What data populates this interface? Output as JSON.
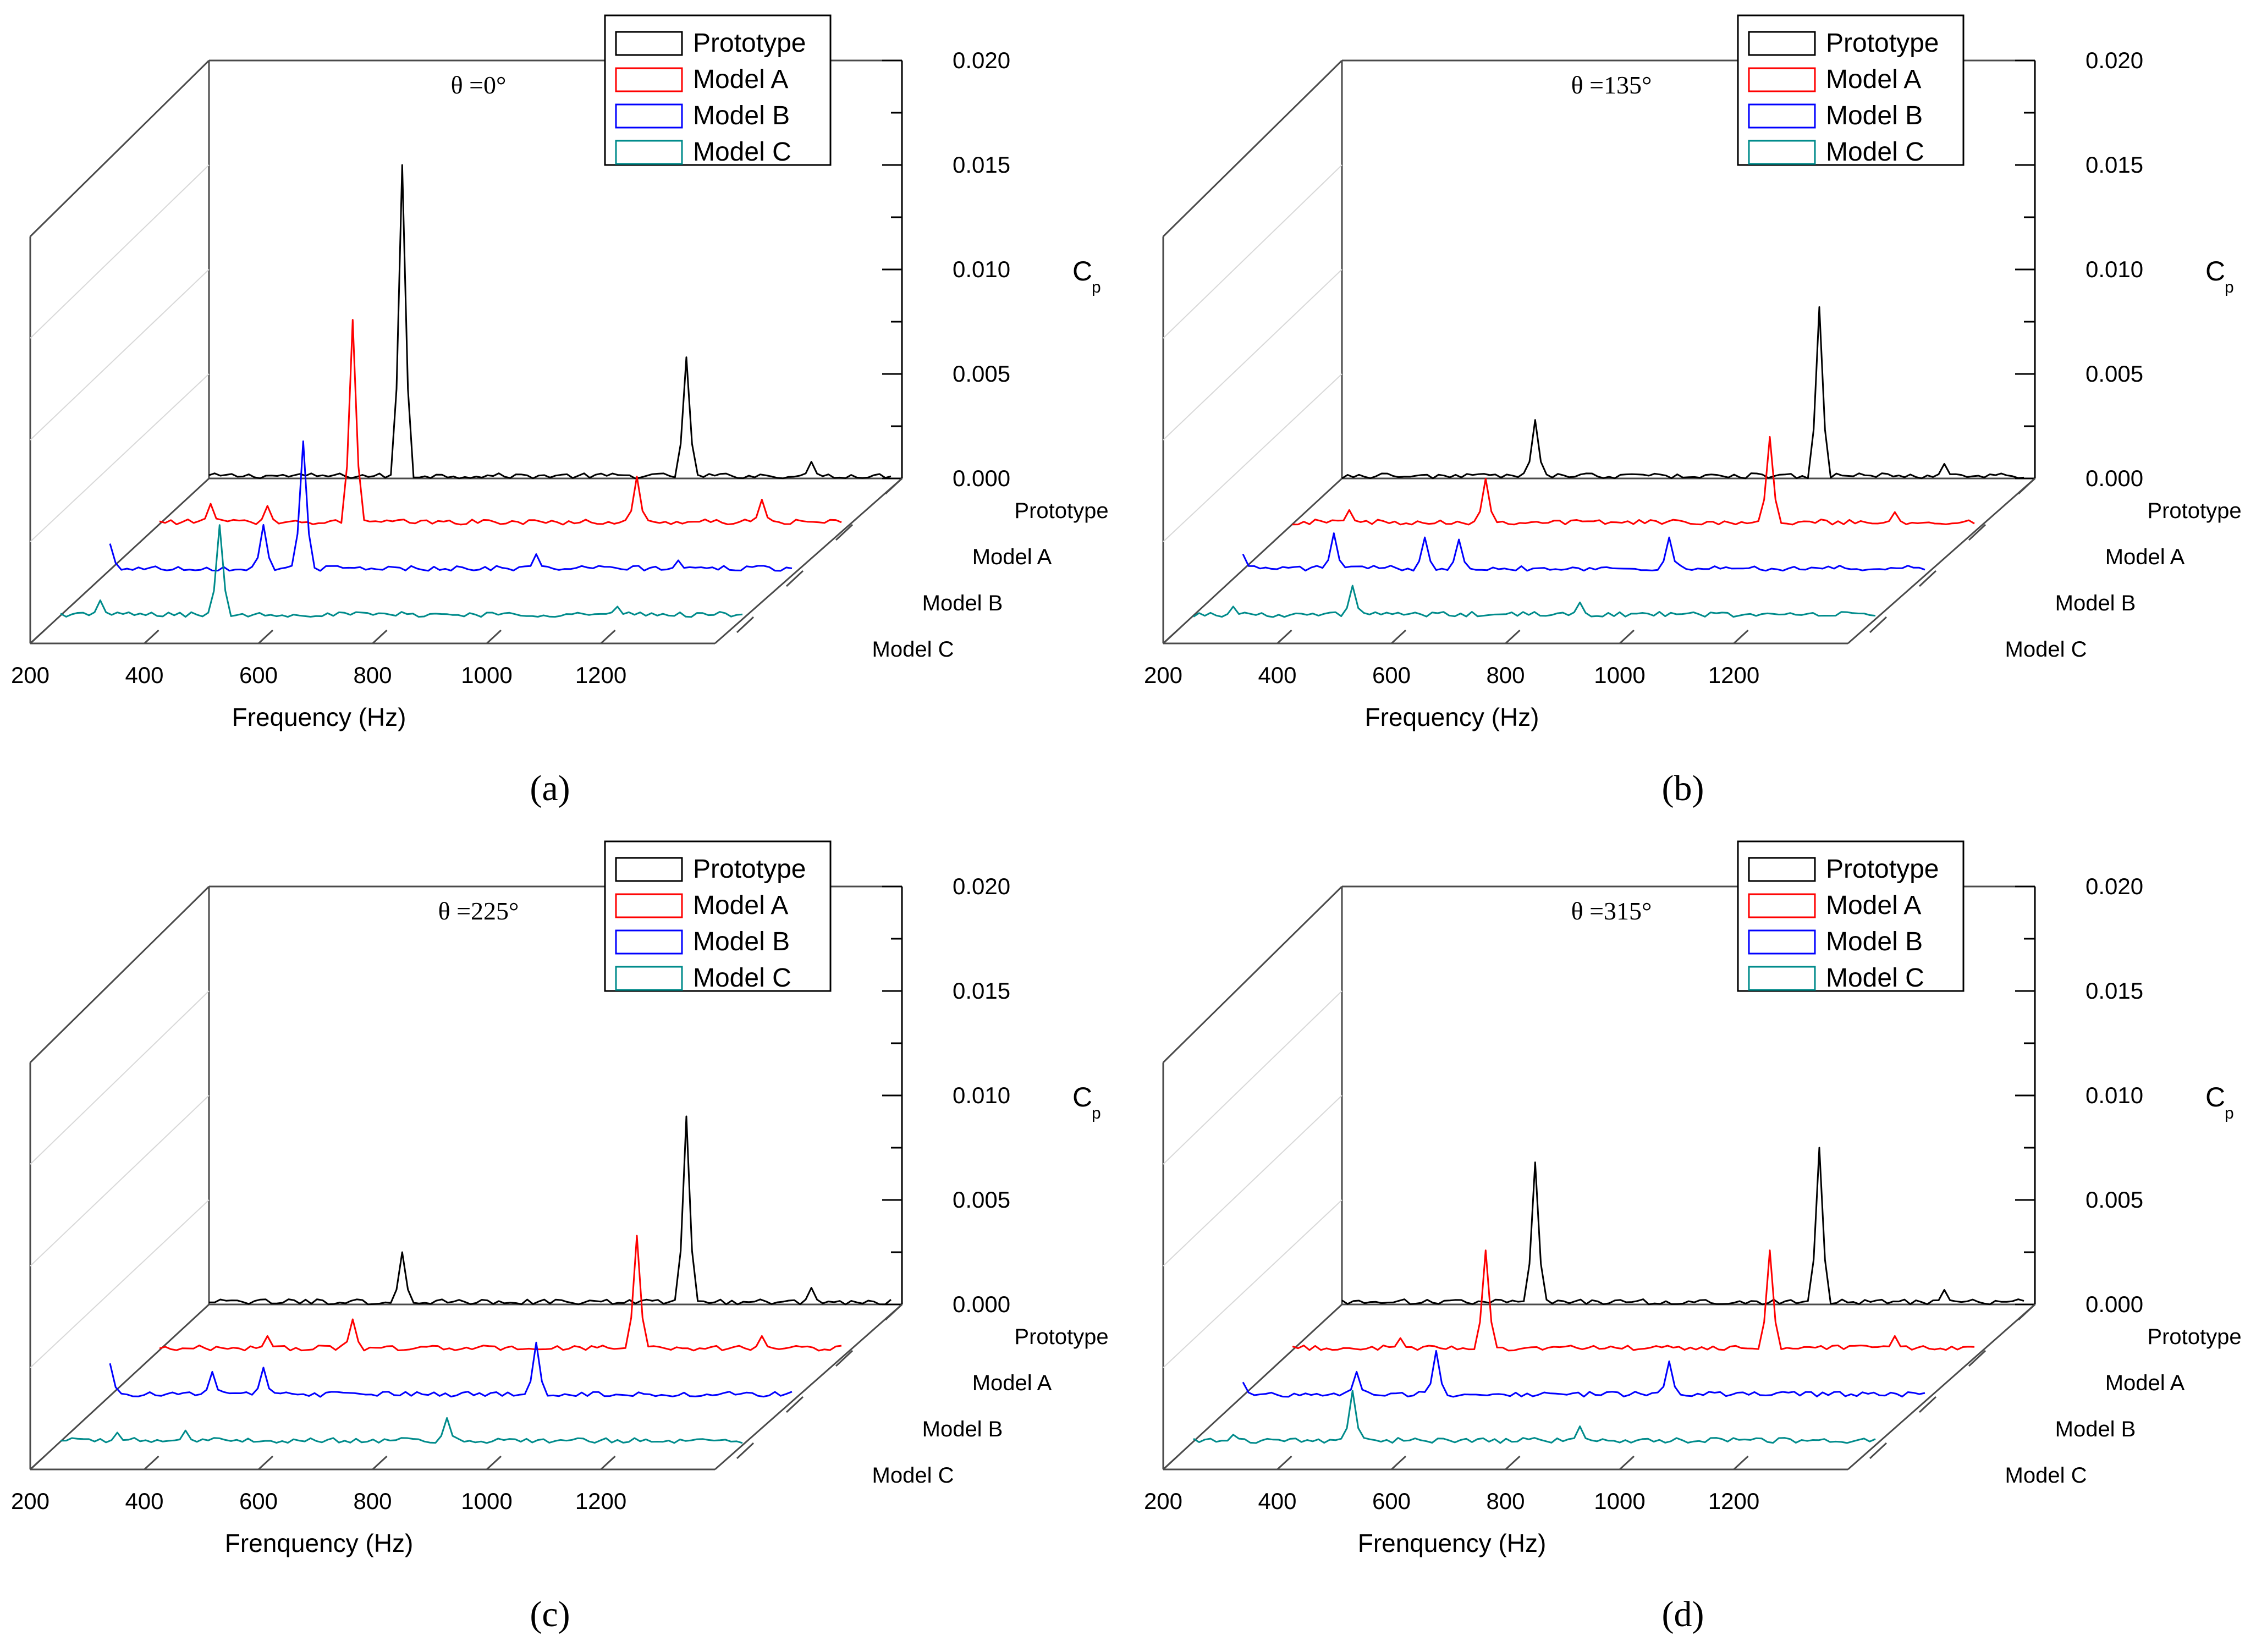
{
  "colors": {
    "prototype": "#000000",
    "model_a": "#ff0000",
    "model_b": "#0000ff",
    "model_c": "#008b8b",
    "frame": "#4a4a4a",
    "grid": "#d8d8d8"
  },
  "chart_data": [
    {
      "type": "line",
      "panel_label": "(a)",
      "angle_label": "θ =0°",
      "xlabel": "Frequency (Hz)",
      "zlabel": "C",
      "zlabel_sub": "p",
      "xlim": [
        200,
        1400
      ],
      "zlim": [
        0,
        0.02
      ],
      "x_ticks": [
        200,
        400,
        600,
        800,
        1000,
        1200
      ],
      "z_ticks": [
        "0.000",
        "0.005",
        "0.010",
        "0.015",
        "0.020"
      ],
      "series_names": [
        "Prototype",
        "Model A",
        "Model B",
        "Model C"
      ],
      "legend": [
        "Prototype",
        "Model A",
        "Model B",
        "Model C"
      ],
      "series": [
        {
          "name": "Prototype",
          "color_key": "prototype",
          "peaks": [
            [
              540,
              0.015
            ],
            [
              1040,
              0.0058
            ],
            [
              1260,
              0.0008
            ]
          ]
        },
        {
          "name": "Model A",
          "color_key": "model_a",
          "peaks": [
            [
              540,
              0.0098
            ],
            [
              1040,
              0.0023
            ],
            [
              1260,
              0.0012
            ],
            [
              290,
              0.001
            ],
            [
              390,
              0.0009
            ]
          ]
        },
        {
          "name": "Model B",
          "color_key": "model_b",
          "peaks": [
            [
              540,
              0.0062
            ],
            [
              200,
              0.0013
            ],
            [
              470,
              0.0022
            ],
            [
              950,
              0.0008
            ],
            [
              1200,
              0.0005
            ]
          ]
        },
        {
          "name": "Model C",
          "color_key": "model_c",
          "peaks": [
            [
              480,
              0.0044
            ],
            [
              270,
              0.0008
            ],
            [
              1180,
              0.0005
            ]
          ]
        }
      ]
    },
    {
      "type": "line",
      "panel_label": "(b)",
      "angle_label": "θ =135°",
      "xlabel": "Frequency (Hz)",
      "zlabel": "C",
      "zlabel_sub": "p",
      "xlim": [
        200,
        1400
      ],
      "zlim": [
        0,
        0.02
      ],
      "x_ticks": [
        200,
        400,
        600,
        800,
        1000,
        1200
      ],
      "z_ticks": [
        "0.000",
        "0.005",
        "0.010",
        "0.015",
        "0.020"
      ],
      "series_names": [
        "Prototype",
        "Model A",
        "Model B",
        "Model C"
      ],
      "legend": [
        "Prototype",
        "Model A",
        "Model B",
        "Model C"
      ],
      "series": [
        {
          "name": "Prototype",
          "color_key": "prototype",
          "peaks": [
            [
              540,
              0.0028
            ],
            [
              1040,
              0.0082
            ],
            [
              1260,
              0.0007
            ]
          ]
        },
        {
          "name": "Model A",
          "color_key": "model_a",
          "peaks": [
            [
              540,
              0.0022
            ],
            [
              1040,
              0.0042
            ],
            [
              1260,
              0.0006
            ],
            [
              300,
              0.0007
            ]
          ]
        },
        {
          "name": "Model B",
          "color_key": "model_b",
          "peaks": [
            [
              360,
              0.0018
            ],
            [
              520,
              0.0016
            ],
            [
              580,
              0.0015
            ],
            [
              950,
              0.0016
            ],
            [
              200,
              0.0008
            ]
          ]
        },
        {
          "name": "Model C",
          "color_key": "model_c",
          "peaks": [
            [
              480,
              0.0015
            ],
            [
              270,
              0.0005
            ],
            [
              880,
              0.0007
            ]
          ]
        }
      ]
    },
    {
      "type": "line",
      "panel_label": "(c)",
      "angle_label": "θ =225°",
      "xlabel": "Frenquency (Hz)",
      "zlabel": "C",
      "zlabel_sub": "p",
      "xlim": [
        200,
        1400
      ],
      "zlim": [
        0,
        0.02
      ],
      "x_ticks": [
        200,
        400,
        600,
        800,
        1000,
        1200
      ],
      "z_ticks": [
        "0.000",
        "0.005",
        "0.010",
        "0.015",
        "0.020"
      ],
      "series_names": [
        "Prototype",
        "Model A",
        "Model B",
        "Model C"
      ],
      "legend": [
        "Prototype",
        "Model A",
        "Model B",
        "Model C"
      ],
      "series": [
        {
          "name": "Prototype",
          "color_key": "prototype",
          "peaks": [
            [
              540,
              0.0025
            ],
            [
              1040,
              0.009
            ],
            [
              1260,
              0.0008
            ]
          ]
        },
        {
          "name": "Model A",
          "color_key": "model_a",
          "peaks": [
            [
              540,
              0.0015
            ],
            [
              1040,
              0.0055
            ],
            [
              1260,
              0.0007
            ],
            [
              390,
              0.0007
            ]
          ]
        },
        {
          "name": "Model B",
          "color_key": "model_b",
          "peaks": [
            [
              200,
              0.0016
            ],
            [
              380,
              0.0012
            ],
            [
              470,
              0.0014
            ],
            [
              950,
              0.0026
            ]
          ]
        },
        {
          "name": "Model C",
          "color_key": "model_c",
          "peaks": [
            [
              880,
              0.0012
            ],
            [
              300,
              0.0005
            ],
            [
              420,
              0.0006
            ]
          ]
        }
      ]
    },
    {
      "type": "line",
      "panel_label": "(d)",
      "angle_label": "θ =315°",
      "xlabel": "Frenquency (Hz)",
      "zlabel": "C",
      "zlabel_sub": "p",
      "xlim": [
        200,
        1400
      ],
      "zlim": [
        0,
        0.02
      ],
      "x_ticks": [
        200,
        400,
        600,
        800,
        1000,
        1200
      ],
      "z_ticks": [
        "0.000",
        "0.005",
        "0.010",
        "0.015",
        "0.020"
      ],
      "series_names": [
        "Prototype",
        "Model A",
        "Model B",
        "Model C"
      ],
      "legend": [
        "Prototype",
        "Model A",
        "Model B",
        "Model C"
      ],
      "series": [
        {
          "name": "Prototype",
          "color_key": "prototype",
          "peaks": [
            [
              540,
              0.0068
            ],
            [
              1040,
              0.0075
            ],
            [
              1260,
              0.0007
            ]
          ]
        },
        {
          "name": "Model A",
          "color_key": "model_a",
          "peaks": [
            [
              540,
              0.0048
            ],
            [
              1040,
              0.0048
            ],
            [
              1260,
              0.0007
            ],
            [
              390,
              0.0006
            ]
          ]
        },
        {
          "name": "Model B",
          "color_key": "model_b",
          "peaks": [
            [
              540,
              0.0022
            ],
            [
              400,
              0.0012
            ],
            [
              950,
              0.0017
            ],
            [
              200,
              0.0007
            ]
          ]
        },
        {
          "name": "Model C",
          "color_key": "model_c",
          "peaks": [
            [
              480,
              0.0025
            ],
            [
              270,
              0.0004
            ],
            [
              880,
              0.0008
            ]
          ]
        }
      ]
    }
  ]
}
